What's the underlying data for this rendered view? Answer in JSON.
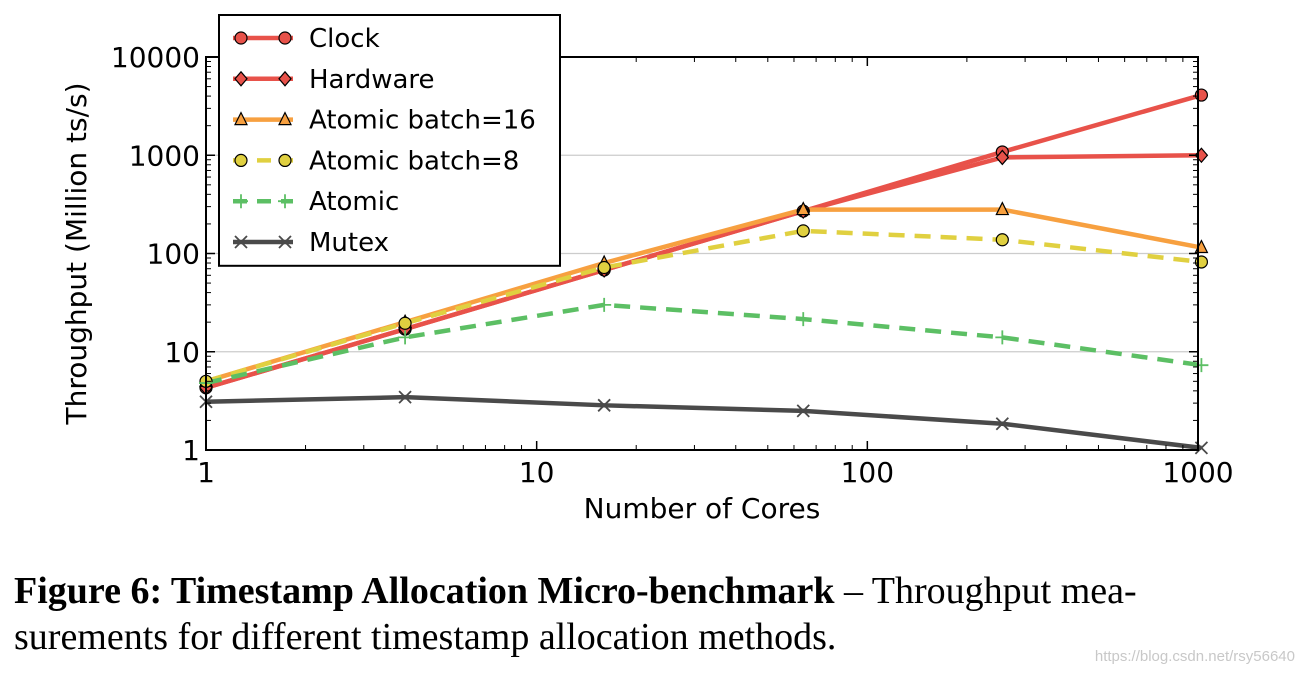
{
  "chart_data": {
    "type": "line",
    "xscale": "log",
    "yscale": "log",
    "xlabel": "Number of Cores",
    "ylabel": "Throughput (Million ts/s)",
    "xlim": [
      1,
      1000
    ],
    "ylim": [
      1,
      10000
    ],
    "xticks": [
      1,
      10,
      100,
      1000
    ],
    "xtick_labels": [
      "1",
      "10",
      "100",
      "1000"
    ],
    "yticks": [
      1,
      10,
      100,
      1000,
      10000
    ],
    "ytick_labels": [
      "1",
      "10",
      "100",
      "1000",
      "10000"
    ],
    "grid": "horizontal",
    "legend_position": "top-left",
    "series": [
      {
        "name": "Clock",
        "color": "#e8524a",
        "dash": "solid",
        "marker": "circle",
        "x": [
          1,
          4,
          16,
          64,
          256,
          1024
        ],
        "y": [
          4.3,
          17,
          68,
          270,
          1080,
          4100
        ]
      },
      {
        "name": "Hardware",
        "color": "#e8524a",
        "dash": "solid",
        "marker": "diamond",
        "x": [
          1,
          4,
          16,
          64,
          256,
          1024
        ],
        "y": [
          4.3,
          17,
          68,
          270,
          950,
          1000
        ]
      },
      {
        "name": "Atomic batch=16",
        "color": "#f7a040",
        "dash": "solid",
        "marker": "triangle",
        "x": [
          1,
          4,
          16,
          64,
          256,
          1024
        ],
        "y": [
          5,
          20,
          80,
          280,
          280,
          115
        ]
      },
      {
        "name": "Atomic batch=8",
        "color": "#e0d040",
        "dash": "dashed",
        "marker": "circle",
        "x": [
          1,
          4,
          16,
          64,
          256,
          1024
        ],
        "y": [
          5,
          19.5,
          72,
          170,
          138,
          82
        ]
      },
      {
        "name": "Atomic",
        "color": "#5cbf64",
        "dash": "dashed",
        "marker": "plus",
        "x": [
          1,
          4,
          16,
          64,
          256,
          1024
        ],
        "y": [
          4.8,
          14,
          30,
          21.5,
          14,
          7.3
        ]
      },
      {
        "name": "Mutex",
        "color": "#4a4a4a",
        "dash": "solid",
        "marker": "x",
        "x": [
          1,
          4,
          16,
          64,
          256,
          1024
        ],
        "y": [
          3.1,
          3.45,
          2.85,
          2.5,
          1.85,
          1.05
        ]
      }
    ]
  },
  "caption": {
    "bold": "Figure 6: Timestamp Allocation Micro-benchmark",
    "rest": " – Throughput mea- surements for different timestamp allocation methods."
  },
  "watermark": "https://blog.csdn.net/rsy56640"
}
